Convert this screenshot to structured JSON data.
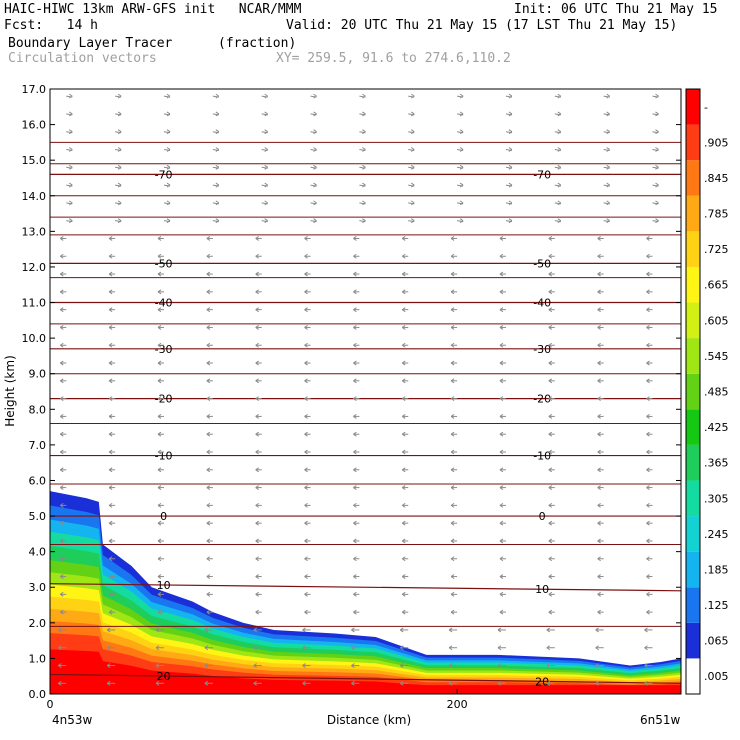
{
  "header": {
    "line1_left": "HAIC-HIWC 13km ARW-GFS init   NCAR/MMM",
    "line1_right": "Init: 06 UTC Thu 21 May 15",
    "line2_left": "Fcst:   14 h",
    "line2_right": "Valid: 20 UTC Thu 21 May 15 (17 LST Thu 21 May 15)",
    "line3_left": "Boundary Layer Tracer",
    "line3_mid": "(fraction)",
    "line4_left": "Circulation vectors",
    "line4_mid": "XY= 259.5, 91.6 to 274.6,110.2"
  },
  "chart_data": {
    "type": "heatmap",
    "title": "Boundary Layer Tracer",
    "units": "(fraction)",
    "xlabel": "Distance (km)",
    "ylabel": "Height (km)",
    "xlim": [
      0,
      310
    ],
    "ylim": [
      0,
      17
    ],
    "x_ticks": [
      {
        "value": 0,
        "label": "0"
      },
      {
        "value": 200,
        "label": "200"
      }
    ],
    "x_endpoint_labels": [
      "4n53w",
      "6n51w"
    ],
    "y_ticks": [
      "0.0",
      "1.0",
      "2.0",
      "3.0",
      "4.0",
      "5.0",
      "6.0",
      "7.0",
      "8.0",
      "9.0",
      "10.0",
      "11.0",
      "12.0",
      "13.0",
      "14.0",
      "15.0",
      "16.0",
      "17.0"
    ],
    "colorbar": {
      "labels": [
        ".005",
        ".065",
        ".125",
        ".185",
        ".245",
        ".305",
        ".365",
        ".425",
        ".485",
        ".545",
        ".605",
        ".665",
        ".725",
        ".785",
        ".845",
        ".905",
        "-"
      ],
      "colors": [
        "#ffffff",
        "#1a2fd8",
        "#1976f0",
        "#14b4f0",
        "#14d2d2",
        "#14dca0",
        "#1ecd5a",
        "#14c814",
        "#64d214",
        "#a0e614",
        "#d2f014",
        "#fff514",
        "#ffd214",
        "#ffaa14",
        "#ff7814",
        "#ff3c14",
        "#ff0000"
      ]
    },
    "tracer_top_profile_km": [
      {
        "x": 0,
        "top": 5.7
      },
      {
        "x": 18,
        "top": 5.5
      },
      {
        "x": 24,
        "top": 5.4
      },
      {
        "x": 26,
        "top": 4.2
      },
      {
        "x": 40,
        "top": 3.6
      },
      {
        "x": 50,
        "top": 3.0
      },
      {
        "x": 60,
        "top": 2.8
      },
      {
        "x": 70,
        "top": 2.6
      },
      {
        "x": 80,
        "top": 2.3
      },
      {
        "x": 95,
        "top": 2.0
      },
      {
        "x": 110,
        "top": 1.8
      },
      {
        "x": 140,
        "top": 1.7
      },
      {
        "x": 160,
        "top": 1.6
      },
      {
        "x": 175,
        "top": 1.3
      },
      {
        "x": 185,
        "top": 1.1
      },
      {
        "x": 220,
        "top": 1.1
      },
      {
        "x": 260,
        "top": 1.0
      },
      {
        "x": 285,
        "top": 0.8
      },
      {
        "x": 300,
        "top": 0.9
      },
      {
        "x": 310,
        "top": 1.0
      }
    ],
    "temperature_contours": [
      {
        "label": "20",
        "heights_km": [
          0.55,
          0.3
        ]
      },
      {
        "label": "10",
        "heights_km": [
          3.1,
          2.9
        ]
      },
      {
        "label": "0",
        "heights_km": [
          5.0,
          5.0
        ]
      },
      {
        "label": "-10",
        "heights_km": [
          6.7,
          6.7
        ]
      },
      {
        "label": "-20",
        "heights_km": [
          8.3,
          8.3
        ]
      },
      {
        "label": "-30",
        "heights_km": [
          9.7,
          9.7
        ]
      },
      {
        "label": "-40",
        "heights_km": [
          11.0,
          11.0
        ]
      },
      {
        "label": "-50",
        "heights_km": [
          12.1,
          12.1
        ]
      },
      {
        "label": "-70",
        "heights_km": [
          14.6,
          14.6
        ]
      }
    ],
    "grid": false,
    "vectors": "circulation vectors overlaid on grid"
  }
}
